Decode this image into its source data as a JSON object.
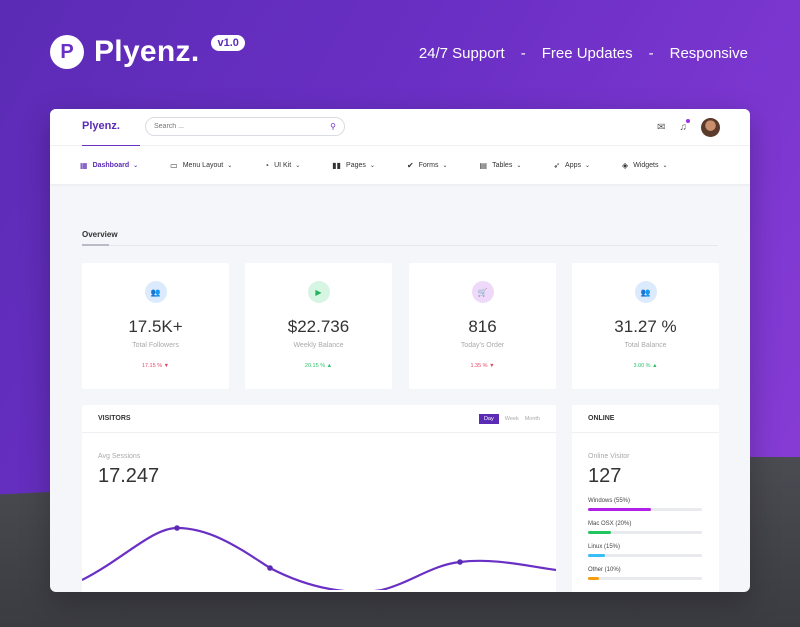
{
  "marketing": {
    "logo_letter": "P",
    "brand": "Plyenz.",
    "version": "v1.0",
    "features": [
      "24/7 Support",
      "Free Updates",
      "Responsive"
    ],
    "separator": "-"
  },
  "topbar": {
    "logo": "Plyenz.",
    "search_placeholder": "Search ..."
  },
  "nav": [
    {
      "label": "Dashboard",
      "icon": "grid-icon",
      "glyph": "▦",
      "active": true
    },
    {
      "label": "Menu Layout",
      "icon": "monitor-icon",
      "glyph": "▭"
    },
    {
      "label": "UI Kit",
      "icon": "pie-icon",
      "glyph": "◔"
    },
    {
      "label": "Pages",
      "icon": "book-icon",
      "glyph": "▮▮"
    },
    {
      "label": "Forms",
      "icon": "check-circle-icon",
      "glyph": "✔"
    },
    {
      "label": "Tables",
      "icon": "table-icon",
      "glyph": "▤"
    },
    {
      "label": "Apps",
      "icon": "rocket-icon",
      "glyph": "➶"
    },
    {
      "label": "Widgets",
      "icon": "layers-icon",
      "glyph": "◈"
    }
  ],
  "overview": {
    "title": "Overview",
    "stats": [
      {
        "value": "17.5K+",
        "label": "Total Followers",
        "change": "17.15 %",
        "dir": "down",
        "icon": "users-icon",
        "glyph": "👥",
        "bg": "#dbeafc",
        "fg": "#3a8de0"
      },
      {
        "value": "$22.736",
        "label": "Weekly Balance",
        "change": "20.15 %",
        "dir": "up",
        "icon": "video-icon",
        "glyph": "▶",
        "bg": "#d6f5e2",
        "fg": "#22b360"
      },
      {
        "value": "816",
        "label": "Today's Order",
        "change": "1.35 %",
        "dir": "down",
        "icon": "cart-icon",
        "glyph": "🛒",
        "bg": "#eed9fb",
        "fg": "#9b30e8"
      },
      {
        "value": "31.27 %",
        "label": "Total Balance",
        "change": "3.00 %",
        "dir": "up",
        "icon": "users-icon",
        "glyph": "👥",
        "bg": "#dbeafc",
        "fg": "#3a8de0"
      }
    ]
  },
  "visitors": {
    "title": "VISITORS",
    "toggles": [
      "Day",
      "Week",
      "Month"
    ],
    "active_toggle": "Day",
    "metric_label": "Avg Sessions",
    "metric_value": "17.247"
  },
  "online": {
    "title": "ONLINE",
    "metric_label": "Online Visitor",
    "metric_value": "127",
    "os": [
      {
        "label": "Windows (55%)",
        "percent": 55,
        "color": "#b020e8"
      },
      {
        "label": "Mac OSX (20%)",
        "percent": 20,
        "color": "#22c55e"
      },
      {
        "label": "Linux (15%)",
        "percent": 15,
        "color": "#38bdf8"
      },
      {
        "label": "Other (10%)",
        "percent": 10,
        "color": "#f59e0b"
      }
    ]
  },
  "colors": {
    "accent": "#5b2bb5",
    "line": "#6a2fc4"
  }
}
